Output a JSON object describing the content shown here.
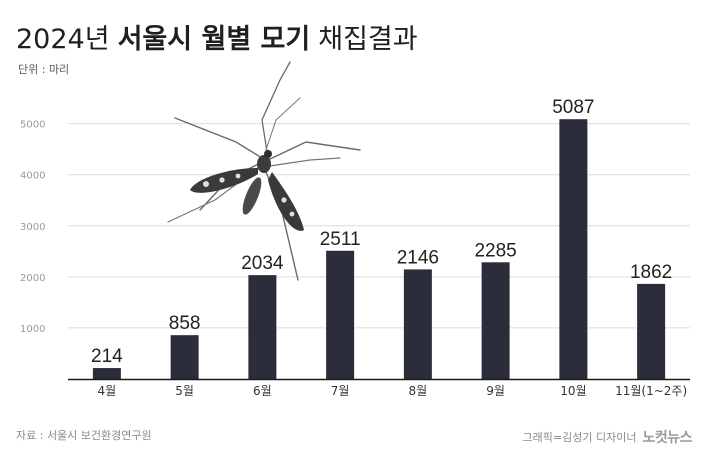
{
  "header": {
    "title_light": "2024년",
    "title_bold": "서울시 월별 모기",
    "title_tail": "채집결과",
    "unit": "단위 : 마리"
  },
  "chart_data": {
    "type": "bar",
    "title": "2024년 서울시 월별 모기 채집결과",
    "ylabel": "단위 : 마리",
    "categories": [
      "4월",
      "5월",
      "6월",
      "7월",
      "8월",
      "9월",
      "10월",
      "11월(1~2주)"
    ],
    "values": [
      214,
      858,
      2034,
      2511,
      2146,
      2285,
      5087,
      1862
    ],
    "value_labels": [
      "214",
      "858",
      "2034",
      "2511",
      "2146",
      "2285",
      "5087",
      "1862"
    ],
    "yticks": [
      1000,
      2000,
      3000,
      4000,
      5000
    ],
    "ytick_labels": [
      "1000",
      "2000",
      "3000",
      "4000",
      "5000"
    ],
    "ylim": [
      0,
      5600
    ],
    "grid": true,
    "bar_color": "#2b2d3a",
    "grid_color": "#dcdcdc"
  },
  "footer": {
    "source": "자료 : 서울시 보건환경연구원",
    "credit": "그래픽=김성기 디자이너",
    "logo": "노컷뉴스"
  }
}
